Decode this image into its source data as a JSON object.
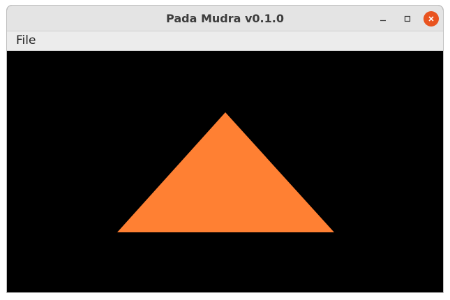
{
  "window": {
    "title": "Pada Mudra v0.1.0",
    "controls": {
      "minimize_icon": "minimize-icon",
      "maximize_icon": "maximize-icon",
      "close_icon": "close-icon",
      "close_color": "#e95420"
    }
  },
  "menubar": {
    "items": [
      {
        "label": "File"
      }
    ]
  },
  "viewport": {
    "background": "#000000",
    "shape": "triangle",
    "shape_color": "#ff8033"
  }
}
